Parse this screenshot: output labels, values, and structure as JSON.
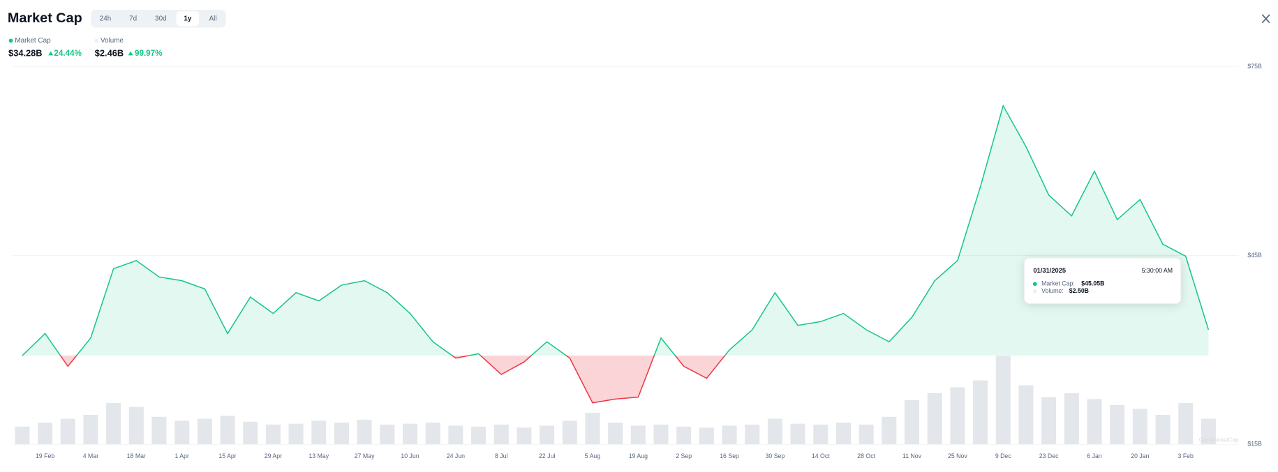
{
  "header": {
    "title": "Market Cap",
    "ranges": [
      "24h",
      "7d",
      "30d",
      "1y",
      "All"
    ]
  },
  "stats": [
    {
      "value": "$34.28B",
      "change": "24.44%"
    },
    {
      "value": "$2.46B",
      "change": "99.97%"
    }
  ],
  "tooltip": {
    "date": "01/31/2025",
    "time": "5:30:00 AM",
    "rows": [
      {
        "label": "Market Cap:",
        "value": "$45.05B"
      },
      {
        "label": "Volume:",
        "value": "$2.50B"
      }
    ]
  },
  "watermark": "CoinMarketCap",
  "chart_data": {
    "type": "line",
    "categories": [
      null,
      "19 Feb",
      null,
      "4 Mar",
      null,
      "18 Mar",
      null,
      "1 Apr",
      null,
      "15 Apr",
      null,
      "29 Apr",
      null,
      "13 May",
      null,
      "27 May",
      null,
      "10 Jun",
      null,
      "24 Jun",
      null,
      "8 Jul",
      null,
      "22 Jul",
      null,
      "5 Aug",
      null,
      "19 Aug",
      null,
      "2 Sep",
      null,
      "16 Sep",
      null,
      "30 Sep",
      null,
      "14 Oct",
      null,
      "28 Oct",
      null,
      "11 Nov",
      null,
      "25 Nov",
      null,
      "9 Dec",
      null,
      "23 Dec",
      null,
      "6 Jan",
      null,
      "20 Jan",
      null,
      "3 Feb",
      null
    ],
    "series": [
      {
        "name": "Market Cap",
        "type": "line",
        "color": "#16c784",
        "down_color": "#ea3943",
        "values": [
          29.1,
          32.6,
          27.4,
          31.9,
          42.9,
          44.2,
          41.6,
          41.0,
          39.7,
          32.6,
          38.4,
          35.8,
          39.1,
          37.8,
          40.3,
          41.0,
          39.1,
          35.8,
          31.3,
          28.7,
          29.4,
          26.1,
          28.1,
          31.3,
          28.7,
          21.6,
          22.2,
          22.5,
          31.9,
          27.4,
          25.5,
          30.0,
          33.2,
          39.1,
          33.9,
          34.5,
          35.8,
          33.2,
          31.3,
          35.2,
          41.0,
          44.2,
          55.9,
          68.8,
          62.3,
          54.6,
          51.3,
          58.4,
          50.7,
          53.9,
          46.8,
          44.9,
          33.2
        ]
      },
      {
        "name": "Volume",
        "type": "bar",
        "axis": "y2",
        "color": "#e3e6ea",
        "values": [
          1.8,
          2.2,
          2.6,
          3.0,
          4.2,
          3.8,
          2.8,
          2.4,
          2.6,
          2.9,
          2.3,
          2.0,
          2.1,
          2.4,
          2.2,
          2.5,
          2.0,
          2.1,
          2.2,
          1.9,
          1.8,
          2.0,
          1.7,
          1.9,
          2.4,
          3.2,
          2.2,
          1.9,
          2.0,
          1.8,
          1.7,
          1.9,
          2.0,
          2.6,
          2.1,
          2.0,
          2.2,
          2.0,
          2.8,
          4.5,
          5.2,
          5.8,
          6.5,
          9.0,
          6.0,
          4.8,
          5.2,
          4.6,
          4.0,
          3.6,
          3.0,
          4.2,
          2.6
        ]
      }
    ],
    "ylim": [
      15,
      75
    ],
    "yticks": [
      {
        "value": 75,
        "label": "$75B"
      },
      {
        "value": 45,
        "label": "$45B"
      },
      {
        "value": 15,
        "label": "$15B"
      }
    ],
    "y2lim": [
      0,
      12
    ],
    "grid": true
  }
}
